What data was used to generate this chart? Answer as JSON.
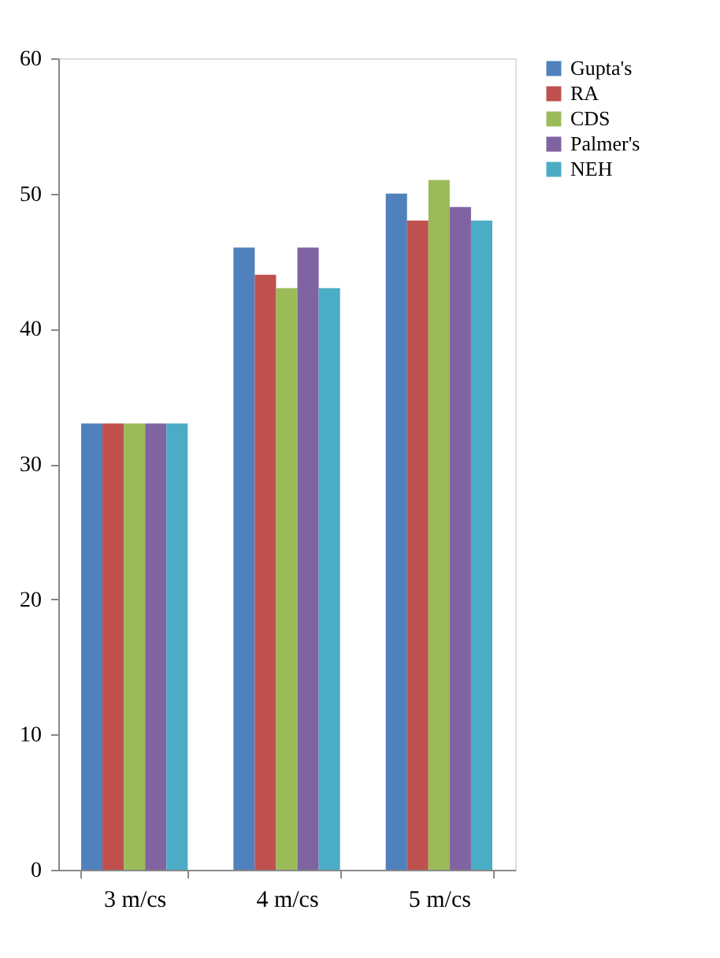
{
  "chart_data": {
    "type": "bar",
    "categories": [
      "3 m/cs",
      "4 m/cs",
      "5 m/cs"
    ],
    "series": [
      {
        "name": "Gupta's",
        "color": "#4f81bd",
        "values": [
          33,
          46,
          50
        ]
      },
      {
        "name": "RA",
        "color": "#c0504d",
        "values": [
          33,
          44,
          48
        ]
      },
      {
        "name": "CDS",
        "color": "#9bbb59",
        "values": [
          33,
          43,
          51
        ]
      },
      {
        "name": "Palmer's",
        "color": "#8064a2",
        "values": [
          33,
          46,
          49
        ]
      },
      {
        "name": "NEH",
        "color": "#4bacc6",
        "values": [
          33,
          43,
          48
        ]
      }
    ],
    "ylim": [
      0,
      60
    ],
    "yticks": [
      0,
      10,
      20,
      30,
      40,
      50,
      60
    ],
    "grid": false,
    "legend": "right"
  }
}
